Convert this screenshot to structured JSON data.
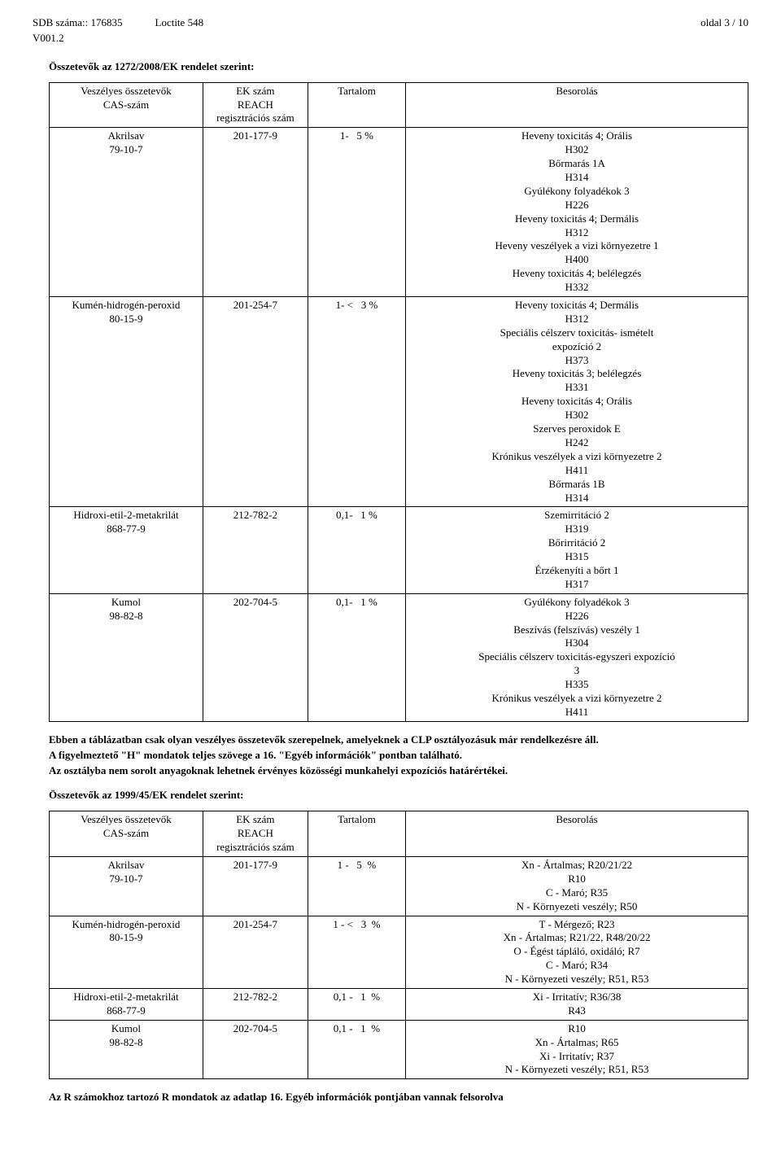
{
  "header": {
    "sdb_label": "SDB száma::",
    "sdb_number": "176835",
    "product": "Loctite 548",
    "page_label": "oldal 3 / 10",
    "version": "V001.2"
  },
  "section1_title": "Összetevők az 1272/2008/EK rendelet szerint:",
  "table_headers": {
    "components": "Veszélyes összetevők\nCAS-szám",
    "ek": "EK szám\nREACH\nregisztrációs szám",
    "content": "Tartalom",
    "classification": "Besorolás"
  },
  "table1_rows": [
    {
      "component": "Akrilsav\n79-10-7",
      "ek": "201-177-9",
      "content": "1-   5 %",
      "classification": "Heveny toxicitás 4;  Orális\nH302\nBőrmarás 1A\nH314\nGyúlékony folyadékok 3\nH226\nHeveny toxicitás 4;  Dermális\nH312\nHeveny veszélyek a vizi környezetre 1\nH400\nHeveny toxicitás 4;  belélegzés\nH332"
    },
    {
      "component": "Kumén-hidrogén-peroxid\n80-15-9",
      "ek": "201-254-7",
      "content": "1- <   3 %",
      "classification": "Heveny toxicitás 4;  Dermális\nH312\nSpeciális célszerv toxicitás- ismételt\nexpozíció 2\nH373\nHeveny toxicitás 3;  belélegzés\nH331\nHeveny toxicitás 4;  Orális\nH302\nSzerves peroxidok E\nH242\nKrónikus veszélyek a vizi környezetre 2\nH411\nBőrmarás 1B\nH314"
    },
    {
      "component": "Hidroxi-etil-2-metakrilát\n868-77-9",
      "ek": "212-782-2",
      "content": "0,1-   1 %",
      "classification": "Szemirritáció 2\nH319\nBőrirritáció 2\nH315\nÉrzékenyíti a bőrt 1\nH317"
    },
    {
      "component": "Kumol\n98-82-8",
      "ek": "202-704-5",
      "content": "0,1-   1 %",
      "classification": "Gyúlékony folyadékok 3\nH226\nBeszívás (felszívás) veszély 1\nH304\nSpeciális célszerv toxicitás-egyszeri expozíció\n3\nH335\nKrónikus veszélyek a vizi környezetre 2\nH411"
    }
  ],
  "mid_paragraphs": [
    "Ebben a táblázatban csak olyan veszélyes összetevők szerepelnek, amelyeknek  a CLP osztályozásuk már rendelkezésre áll.",
    "A figyelmeztető \"H\" mondatok teljes szövege a 16. \"Egyéb információk\" pontban található.",
    "Az osztályba nem sorolt anyagoknak lehetnek érvényes közösségi munkahelyi expozíciós határértékei."
  ],
  "section2_title": "Összetevők az 1999/45/EK rendelet szerint:",
  "table2_rows": [
    {
      "component": "Akrilsav\n79-10-7",
      "ek": "201-177-9",
      "content": "1 -   5  %",
      "classification": "Xn - Ártalmas;  R20/21/22\nR10\nC - Maró;  R35\nN - Környezeti veszély;  R50"
    },
    {
      "component": "Kumén-hidrogén-peroxid\n80-15-9",
      "ek": "201-254-7",
      "content": "1 - <   3  %",
      "classification": "T - Mérgező;  R23\nXn - Ártalmas;  R21/22, R48/20/22\nO - Égést tápláló, oxidáló;  R7\nC - Maró;  R34\nN - Környezeti veszély;  R51, R53"
    },
    {
      "component": "Hidroxi-etil-2-metakrilát\n868-77-9",
      "ek": "212-782-2",
      "content": "0,1 -   1  %",
      "classification": "Xi - Irritatív;  R36/38\nR43"
    },
    {
      "component": "Kumol\n98-82-8",
      "ek": "202-704-5",
      "content": "0,1 -   1  %",
      "classification": "R10\nXn - Ártalmas;  R65\nXi - Irritatív;  R37\nN - Környezeti veszély;  R51, R53"
    }
  ],
  "footer_text": "Az R számokhoz tartozó R mondatok az adatlap 16. Egyéb információk pontjában vannak felsorolva"
}
